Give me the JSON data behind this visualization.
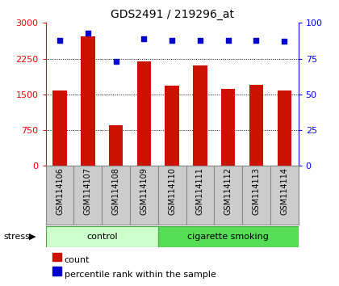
{
  "title": "GDS2491 / 219296_at",
  "samples": [
    "GSM114106",
    "GSM114107",
    "GSM114108",
    "GSM114109",
    "GSM114110",
    "GSM114111",
    "GSM114112",
    "GSM114113",
    "GSM114114"
  ],
  "counts": [
    1580,
    2720,
    860,
    2200,
    1680,
    2100,
    1620,
    1700,
    1590
  ],
  "percentiles": [
    88,
    93,
    73,
    89,
    88,
    88,
    88,
    88,
    87
  ],
  "groups": [
    {
      "label": "control",
      "start": 0,
      "end": 4,
      "color": "#ccffcc"
    },
    {
      "label": "cigarette smoking",
      "start": 4,
      "end": 9,
      "color": "#55dd55"
    }
  ],
  "bar_color": "#cc1100",
  "dot_color": "#0000cc",
  "ylim_left": [
    0,
    3000
  ],
  "ylim_right": [
    0,
    100
  ],
  "yticks_left": [
    0,
    750,
    1500,
    2250,
    3000
  ],
  "yticks_right": [
    0,
    25,
    50,
    75,
    100
  ],
  "bar_width": 0.5,
  "bg_color": "#cccccc",
  "plot_bg": "#ffffff",
  "stress_label": "stress",
  "legend_items": [
    {
      "label": "count",
      "color": "#cc1100"
    },
    {
      "label": "percentile rank within the sample",
      "color": "#0000cc"
    }
  ]
}
